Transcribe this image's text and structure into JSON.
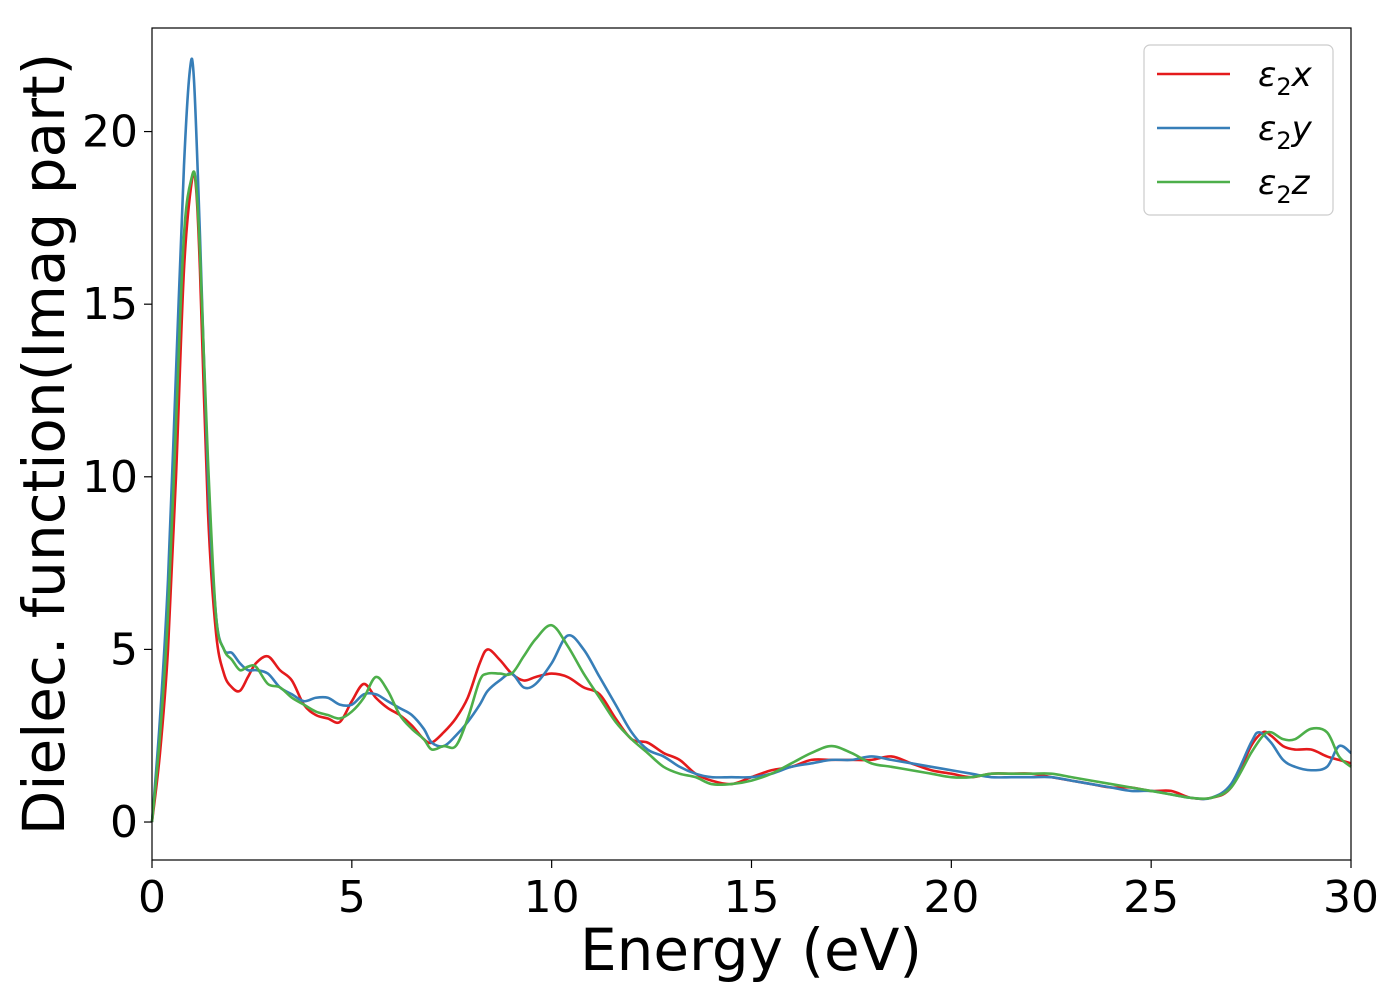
{
  "chart_data": {
    "type": "line",
    "title": "",
    "xlabel": "Energy (eV)",
    "ylabel": "Dielec. function(Imag part)",
    "xlim": [
      0,
      30
    ],
    "ylim": [
      -1.1,
      23
    ],
    "xticks": [
      0,
      5,
      10,
      15,
      20,
      25,
      30
    ],
    "yticks": [
      0,
      5,
      10,
      15,
      20
    ],
    "xtick_labels": [
      "0",
      "5",
      "10",
      "15",
      "20",
      "25",
      "30"
    ],
    "ytick_labels": [
      "0",
      "5",
      "10",
      "15",
      "20"
    ],
    "grid": false,
    "legend_position": "top-right",
    "series": [
      {
        "name": "ε₂x",
        "legend": {
          "base": "ε",
          "sub": "2",
          "suffix": "x"
        },
        "color": "#e41a1c",
        "x": [
          0,
          0.2,
          0.4,
          0.6,
          0.8,
          1.0,
          1.1,
          1.2,
          1.4,
          1.6,
          1.8,
          2.0,
          2.2,
          2.4,
          2.6,
          2.9,
          3.2,
          3.5,
          3.8,
          4.1,
          4.4,
          4.7,
          5.0,
          5.3,
          5.6,
          5.9,
          6.2,
          6.5,
          6.8,
          7.0,
          7.3,
          7.6,
          7.9,
          8.2,
          8.4,
          8.7,
          9.0,
          9.3,
          9.6,
          10.0,
          10.4,
          10.8,
          11.2,
          11.6,
          12.0,
          12.4,
          12.8,
          13.2,
          13.6,
          14.0,
          14.5,
          15.0,
          15.5,
          16.0,
          16.5,
          17.0,
          17.5,
          18.0,
          18.5,
          19.0,
          19.5,
          20.0,
          20.5,
          21.0,
          21.5,
          22.0,
          22.5,
          23.0,
          23.5,
          24.0,
          24.5,
          25.0,
          25.5,
          26.0,
          26.5,
          27.0,
          27.5,
          27.8,
          28.0,
          28.3,
          28.6,
          29.0,
          29.4,
          29.7,
          30.0
        ],
        "y": [
          0,
          2.0,
          5.0,
          10.0,
          16.0,
          18.6,
          18.4,
          16.0,
          9.0,
          5.5,
          4.3,
          3.9,
          3.8,
          4.2,
          4.6,
          4.8,
          4.4,
          4.1,
          3.4,
          3.1,
          3.0,
          2.9,
          3.5,
          4.0,
          3.6,
          3.3,
          3.1,
          2.8,
          2.4,
          2.3,
          2.6,
          3.0,
          3.6,
          4.6,
          5.0,
          4.7,
          4.3,
          4.1,
          4.2,
          4.3,
          4.2,
          3.9,
          3.7,
          3.0,
          2.4,
          2.3,
          2.0,
          1.8,
          1.4,
          1.2,
          1.1,
          1.3,
          1.5,
          1.6,
          1.8,
          1.8,
          1.8,
          1.8,
          1.9,
          1.7,
          1.5,
          1.4,
          1.3,
          1.4,
          1.4,
          1.4,
          1.3,
          1.2,
          1.1,
          1.0,
          1.0,
          0.9,
          0.9,
          0.7,
          0.7,
          1.0,
          2.2,
          2.6,
          2.5,
          2.2,
          2.1,
          2.1,
          1.9,
          1.8,
          1.7
        ]
      },
      {
        "name": "ε₂y",
        "legend": {
          "base": "ε",
          "sub": "2",
          "suffix": "y"
        },
        "color": "#377eb8",
        "x": [
          0,
          0.2,
          0.4,
          0.6,
          0.8,
          0.95,
          1.05,
          1.2,
          1.4,
          1.6,
          1.8,
          2.0,
          2.2,
          2.4,
          2.6,
          2.9,
          3.2,
          3.5,
          3.8,
          4.1,
          4.4,
          4.7,
          5.0,
          5.3,
          5.6,
          5.9,
          6.2,
          6.5,
          6.8,
          7.0,
          7.3,
          7.6,
          7.9,
          8.2,
          8.4,
          8.7,
          9.0,
          9.3,
          9.6,
          10.0,
          10.4,
          10.8,
          11.2,
          11.6,
          12.0,
          12.4,
          12.8,
          13.2,
          13.6,
          14.0,
          14.5,
          15.0,
          15.5,
          16.0,
          16.5,
          17.0,
          17.5,
          18.0,
          18.5,
          19.0,
          19.5,
          20.0,
          20.5,
          21.0,
          21.5,
          22.0,
          22.5,
          23.0,
          23.5,
          24.0,
          24.5,
          25.0,
          25.5,
          26.0,
          26.5,
          27.0,
          27.5,
          27.7,
          28.0,
          28.3,
          28.6,
          29.0,
          29.4,
          29.7,
          30.0
        ],
        "y": [
          0,
          3.0,
          7.0,
          13.0,
          19.0,
          21.8,
          21.5,
          17.0,
          10.0,
          6.0,
          5.0,
          4.9,
          4.6,
          4.4,
          4.4,
          4.3,
          3.9,
          3.7,
          3.5,
          3.6,
          3.6,
          3.4,
          3.4,
          3.7,
          3.7,
          3.5,
          3.3,
          3.1,
          2.7,
          2.3,
          2.2,
          2.5,
          2.9,
          3.4,
          3.8,
          4.1,
          4.3,
          3.9,
          4.0,
          4.6,
          5.4,
          5.0,
          4.2,
          3.4,
          2.6,
          2.1,
          1.9,
          1.6,
          1.4,
          1.3,
          1.3,
          1.3,
          1.4,
          1.6,
          1.7,
          1.8,
          1.8,
          1.9,
          1.8,
          1.7,
          1.6,
          1.5,
          1.4,
          1.3,
          1.3,
          1.3,
          1.3,
          1.2,
          1.1,
          1.0,
          0.9,
          0.9,
          0.8,
          0.7,
          0.7,
          1.1,
          2.3,
          2.6,
          2.3,
          1.8,
          1.6,
          1.5,
          1.6,
          2.2,
          2.0
        ]
      },
      {
        "name": "ε₂z",
        "legend": {
          "base": "ε",
          "sub": "2",
          "suffix": "z"
        },
        "color": "#4daf4a",
        "x": [
          0,
          0.2,
          0.4,
          0.6,
          0.8,
          1.0,
          1.1,
          1.2,
          1.4,
          1.6,
          1.8,
          2.0,
          2.2,
          2.4,
          2.6,
          2.9,
          3.2,
          3.5,
          3.8,
          4.1,
          4.4,
          4.7,
          5.0,
          5.3,
          5.6,
          5.9,
          6.2,
          6.5,
          6.8,
          7.0,
          7.3,
          7.6,
          7.9,
          8.2,
          8.4,
          8.7,
          9.0,
          9.3,
          9.6,
          10.0,
          10.4,
          10.8,
          11.2,
          11.6,
          12.0,
          12.4,
          12.8,
          13.2,
          13.6,
          14.0,
          14.5,
          15.0,
          15.5,
          16.0,
          16.5,
          17.0,
          17.5,
          18.0,
          18.5,
          19.0,
          19.5,
          20.0,
          20.5,
          21.0,
          21.5,
          22.0,
          22.5,
          23.0,
          23.5,
          24.0,
          24.5,
          25.0,
          25.5,
          26.0,
          26.5,
          27.0,
          27.5,
          27.8,
          28.0,
          28.3,
          28.6,
          29.0,
          29.4,
          29.7,
          30.0
        ],
        "y": [
          0,
          2.5,
          6.0,
          11.5,
          17.0,
          18.7,
          18.5,
          16.5,
          10.5,
          6.0,
          5.0,
          4.7,
          4.4,
          4.5,
          4.5,
          4.0,
          3.9,
          3.6,
          3.4,
          3.2,
          3.1,
          3.0,
          3.2,
          3.6,
          4.2,
          3.8,
          3.1,
          2.7,
          2.4,
          2.1,
          2.2,
          2.2,
          3.0,
          4.1,
          4.3,
          4.3,
          4.3,
          4.8,
          5.3,
          5.7,
          5.1,
          4.3,
          3.6,
          2.9,
          2.4,
          2.0,
          1.6,
          1.4,
          1.3,
          1.1,
          1.1,
          1.2,
          1.4,
          1.7,
          2.0,
          2.2,
          2.0,
          1.7,
          1.6,
          1.5,
          1.4,
          1.3,
          1.3,
          1.4,
          1.4,
          1.4,
          1.4,
          1.3,
          1.2,
          1.1,
          1.0,
          0.9,
          0.8,
          0.7,
          0.7,
          1.0,
          2.0,
          2.5,
          2.6,
          2.4,
          2.4,
          2.7,
          2.6,
          1.9,
          1.6
        ]
      }
    ]
  }
}
